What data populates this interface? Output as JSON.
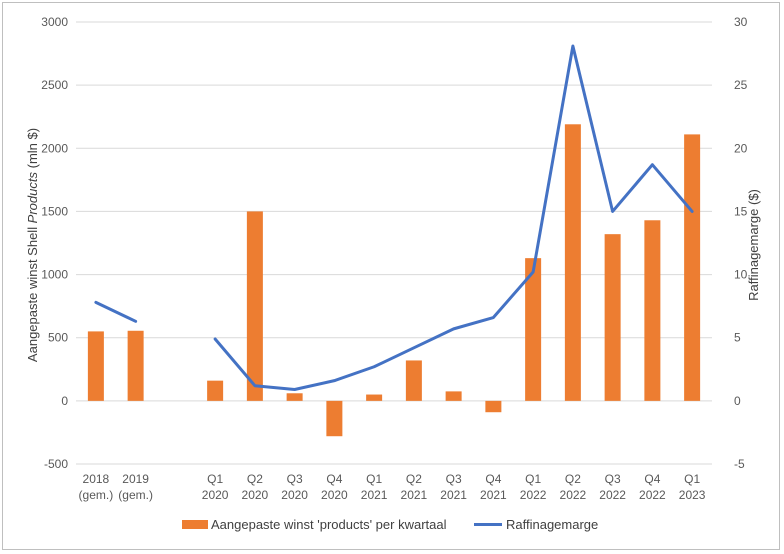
{
  "chart_data": {
    "type": "bar",
    "categories": [
      [
        "2018",
        "(gem.)"
      ],
      [
        "2019",
        "(gem.)"
      ],
      [
        "",
        ""
      ],
      [
        "Q1",
        "2020"
      ],
      [
        "Q2",
        "2020"
      ],
      [
        "Q3",
        "2020"
      ],
      [
        "Q4",
        "2020"
      ],
      [
        "Q1",
        "2021"
      ],
      [
        "Q2",
        "2021"
      ],
      [
        "Q3",
        "2021"
      ],
      [
        "Q4",
        "2021"
      ],
      [
        "Q1",
        "2022"
      ],
      [
        "Q2",
        "2022"
      ],
      [
        "Q3",
        "2022"
      ],
      [
        "Q4",
        "2022"
      ],
      [
        "Q1",
        "2023"
      ]
    ],
    "series": [
      {
        "name": "Aangepaste winst 'products' per kwartaal",
        "type": "bar",
        "axis": "left",
        "color": "#ED7D31",
        "values": [
          550,
          555,
          null,
          160,
          1500,
          60,
          -280,
          50,
          320,
          75,
          -90,
          1130,
          2190,
          1320,
          1430,
          2110
        ]
      },
      {
        "name": "Raffinagemarge",
        "type": "line",
        "axis": "right",
        "color": "#4472C4",
        "values": [
          7.8,
          6.3,
          null,
          4.9,
          1.2,
          0.9,
          1.6,
          2.7,
          4.2,
          5.7,
          6.6,
          10.2,
          28.1,
          15.0,
          18.7,
          15.0
        ]
      }
    ],
    "ylabel_left": [
      "Aangepaste winst Shell ",
      "Products",
      " (mln $)"
    ],
    "ylabel_right": "Raffinagemarge ($)",
    "ylim_left": [
      -500,
      3000
    ],
    "ylim_right": [
      -5,
      30
    ],
    "yticks_left": [
      "-500",
      "0",
      "500",
      "1000",
      "1500",
      "2000",
      "2500",
      "3000"
    ],
    "yticks_right": [
      "-5",
      "0",
      "5",
      "10",
      "15",
      "20",
      "25",
      "30"
    ],
    "grid": true,
    "legend_position": "bottom"
  }
}
